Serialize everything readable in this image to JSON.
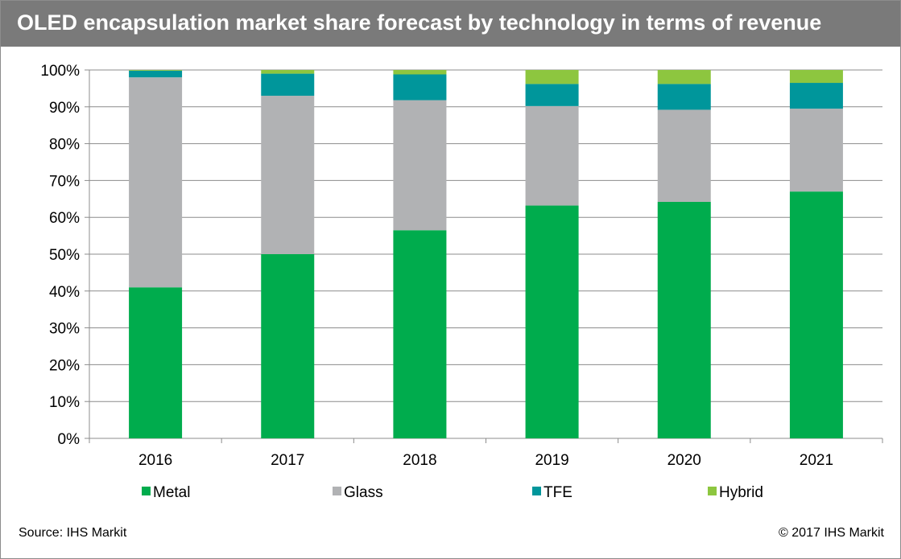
{
  "title": "OLED encapsulation market share forecast by technology in terms of revenue",
  "source": "Source: IHS Markit",
  "copyright": "© 2017 IHS Markit",
  "colors": {
    "title_bar": "#7a7a7a",
    "Metal": "#00ac4d",
    "Glass": "#b1b2b4",
    "TFE": "#00969b",
    "Hybrid": "#8dc63f"
  },
  "chart_data": {
    "type": "bar",
    "stacked": true,
    "categories": [
      "2016",
      "2017",
      "2018",
      "2019",
      "2020",
      "2021"
    ],
    "series": [
      {
        "name": "Metal",
        "values": [
          41,
          50,
          56.5,
          63.2,
          64.2,
          67
        ]
      },
      {
        "name": "Glass",
        "values": [
          57,
          43,
          35.3,
          27,
          25,
          22.5
        ]
      },
      {
        "name": "TFE",
        "values": [
          1.8,
          6,
          7,
          6,
          7,
          7
        ]
      },
      {
        "name": "Hybrid",
        "values": [
          0.2,
          1,
          1.2,
          3.8,
          3.8,
          3.5
        ]
      }
    ],
    "y_ticks": [
      "0%",
      "10%",
      "20%",
      "30%",
      "40%",
      "50%",
      "60%",
      "70%",
      "80%",
      "90%",
      "100%"
    ],
    "ylim": [
      0,
      100
    ],
    "grid": true,
    "legend_position": "bottom"
  }
}
